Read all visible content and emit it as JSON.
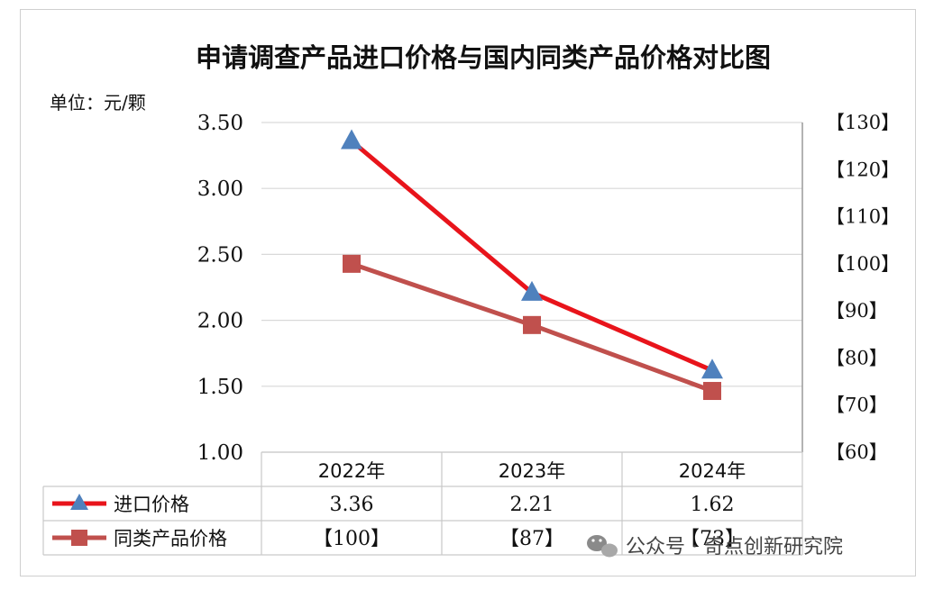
{
  "chart_data": {
    "type": "line",
    "title": "申请调查产品进口价格与国内同类产品价格对比图",
    "unit_label": "单位：元/颗",
    "categories": [
      "2022年",
      "2023年",
      "2024年"
    ],
    "y_left": {
      "ylim": [
        1.0,
        3.5
      ],
      "ticks": [
        "3.50",
        "3.00",
        "2.50",
        "2.00",
        "1.50",
        "1.00"
      ],
      "tick_values": [
        3.5,
        3.0,
        2.5,
        2.0,
        1.5,
        1.0
      ]
    },
    "y_right": {
      "ylim": [
        60,
        130
      ],
      "ticks": [
        "【130】",
        "【120】",
        "【110】",
        "【100】",
        "【90】",
        "【80】",
        "【70】",
        "【60】"
      ],
      "tick_values": [
        130,
        120,
        110,
        100,
        90,
        80,
        70,
        60
      ]
    },
    "grid": true,
    "series": [
      {
        "name": "进口价格",
        "axis": "left",
        "values": [
          3.36,
          2.21,
          1.62
        ],
        "labels": [
          "3.36",
          "2.21",
          "1.62"
        ],
        "color": "#e8141b",
        "marker": "triangle",
        "marker_color": "#4f81bd"
      },
      {
        "name": "同类产品价格",
        "axis": "right",
        "values": [
          100,
          87,
          73
        ],
        "labels": [
          "【100】",
          "【87】",
          "【73】"
        ],
        "color": "#c0504d",
        "marker": "square",
        "marker_color": "#c0504d"
      }
    ]
  },
  "watermark": {
    "text": "公众号 · 奇点创新研究院",
    "icon": "wechat-icon"
  }
}
